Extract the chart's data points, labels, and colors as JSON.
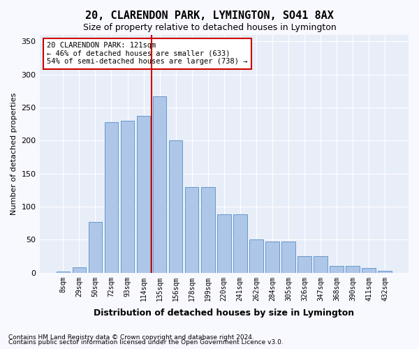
{
  "title": "20, CLARENDON PARK, LYMINGTON, SO41 8AX",
  "subtitle": "Size of property relative to detached houses in Lymington",
  "xlabel": "Distribution of detached houses by size in Lymington",
  "ylabel": "Number of detached properties",
  "bar_labels": [
    "8sqm",
    "29sqm",
    "50sqm",
    "72sqm",
    "93sqm",
    "114sqm",
    "135sqm",
    "156sqm",
    "178sqm",
    "199sqm",
    "220sqm",
    "241sqm",
    "262sqm",
    "284sqm",
    "305sqm",
    "326sqm",
    "347sqm",
    "368sqm",
    "390sqm",
    "411sqm",
    "432sqm"
  ],
  "bar_heights": [
    2,
    8,
    77,
    228,
    230,
    237,
    267,
    200,
    130,
    130,
    88,
    88,
    50,
    47,
    47,
    25,
    25,
    10,
    10,
    7,
    3
  ],
  "bar_color": "#aec6e8",
  "bar_edge_color": "#6699cc",
  "bg_color": "#e8eef8",
  "grid_color": "#ffffff",
  "vline_color": "#cc0000",
  "annotation_text": "20 CLARENDON PARK: 121sqm\n← 46% of detached houses are smaller (633)\n54% of semi-detached houses are larger (738) →",
  "annotation_box_color": "#cc0000",
  "ylim": [
    0,
    360
  ],
  "yticks": [
    0,
    50,
    100,
    150,
    200,
    250,
    300,
    350
  ],
  "footer1": "Contains HM Land Registry data © Crown copyright and database right 2024.",
  "footer2": "Contains public sector information licensed under the Open Government Licence v3.0."
}
